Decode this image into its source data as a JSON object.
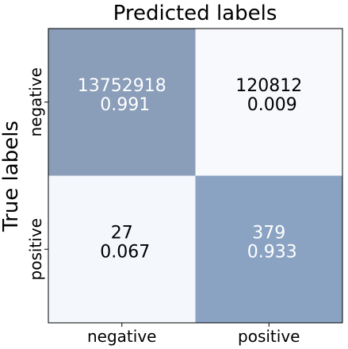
{
  "chart_data": {
    "type": "heatmap",
    "title": "Predicted labels",
    "ylabel": "True labels",
    "x_categories": [
      "negative",
      "positive"
    ],
    "y_categories": [
      "negative",
      "positive"
    ],
    "cells": [
      [
        {
          "count": "13752918",
          "ratio": "0.991",
          "color": "#8a9db9",
          "text_color": "#ffffff"
        },
        {
          "count": "120812",
          "ratio": "0.009",
          "color": "#f7f9fd",
          "text_color": "#000000"
        }
      ],
      [
        {
          "count": "27",
          "ratio": "0.067",
          "color": "#f4f7fc",
          "text_color": "#000000"
        },
        {
          "count": "379",
          "ratio": "0.933",
          "color": "#8aa3c2",
          "text_color": "#ffffff"
        }
      ]
    ]
  }
}
